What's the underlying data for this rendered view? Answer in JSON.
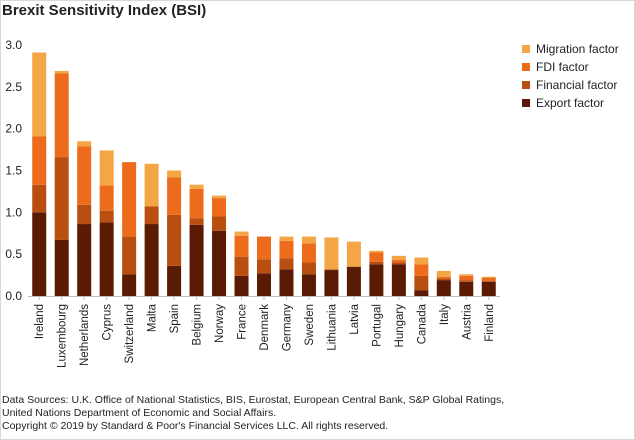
{
  "chart_data": {
    "type": "bar",
    "stacked": true,
    "title": "Brexit Sensitivity Index (BSI)",
    "ylim": [
      0,
      3.0
    ],
    "yticks": [
      "0.0",
      "0.5",
      "1.0",
      "1.5",
      "2.0",
      "2.5",
      "3.0"
    ],
    "grid": false,
    "legend_position": "right",
    "categories": [
      "Ireland",
      "Luxembourg",
      "Netherlands",
      "Cyprus",
      "Switzerland",
      "Malta",
      "Spain",
      "Belgium",
      "Norway",
      "France",
      "Denmark",
      "Germany",
      "Sweden",
      "Lithuania",
      "Latvia",
      "Portugal",
      "Hungary",
      "Canada",
      "Italy",
      "Austria",
      "Finland"
    ],
    "series": [
      {
        "name": "Export factor",
        "color": "#5a1a04",
        "values": [
          1.0,
          0.67,
          0.86,
          0.88,
          0.26,
          0.86,
          0.36,
          0.85,
          0.78,
          0.24,
          0.27,
          0.32,
          0.26,
          0.31,
          0.35,
          0.38,
          0.38,
          0.07,
          0.19,
          0.17,
          0.17
        ]
      },
      {
        "name": "Financial factor",
        "color": "#b84e10",
        "values": [
          0.33,
          0.99,
          0.23,
          0.14,
          0.45,
          0.21,
          0.61,
          0.08,
          0.17,
          0.23,
          0.17,
          0.13,
          0.14,
          0.01,
          0.0,
          0.03,
          0.02,
          0.17,
          0.02,
          0.02,
          0.01
        ]
      },
      {
        "name": "FDI factor",
        "color": "#ec6c1c",
        "values": [
          0.58,
          1.0,
          0.7,
          0.3,
          0.89,
          0.0,
          0.45,
          0.35,
          0.22,
          0.25,
          0.27,
          0.21,
          0.23,
          0.0,
          0.0,
          0.11,
          0.03,
          0.14,
          0.02,
          0.05,
          0.04
        ]
      },
      {
        "name": "Migration factor",
        "color": "#f4a644",
        "values": [
          1.0,
          0.03,
          0.06,
          0.42,
          0.0,
          0.51,
          0.08,
          0.05,
          0.03,
          0.05,
          0.0,
          0.05,
          0.08,
          0.38,
          0.3,
          0.02,
          0.05,
          0.08,
          0.07,
          0.02,
          0.01
        ]
      }
    ]
  },
  "footer": {
    "line1": "Data Sources: U.K. Office of National Statistics, BIS, Eurostat, European Central Bank, S&P Global Ratings,",
    "line2": "United Nations Department of Economic and Social Affairs.",
    "line3": "Copyright © 2019 by Standard & Poor's Financial Services LLC. All rights reserved."
  }
}
